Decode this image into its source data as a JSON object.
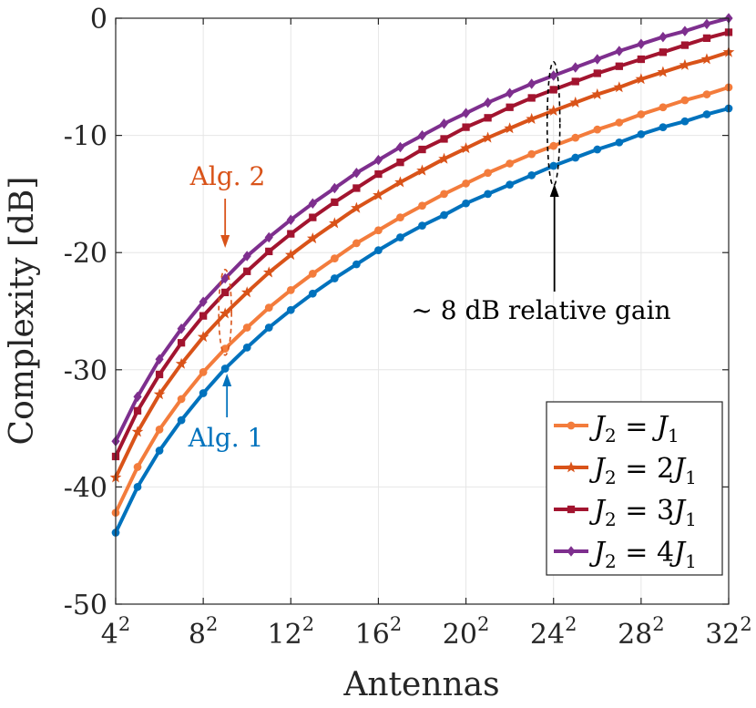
{
  "chart_data": {
    "type": "line",
    "title": "",
    "xlabel": "Antennas",
    "ylabel": "Complexity [dB]",
    "xlim": [
      4,
      32
    ],
    "ylim": [
      -50,
      0
    ],
    "x_ticks": [
      {
        "value": 4,
        "base": "4",
        "exp": "2"
      },
      {
        "value": 8,
        "base": "8",
        "exp": "2"
      },
      {
        "value": 12,
        "base": "12",
        "exp": "2"
      },
      {
        "value": 16,
        "base": "16",
        "exp": "2"
      },
      {
        "value": 20,
        "base": "20",
        "exp": "2"
      },
      {
        "value": 24,
        "base": "24",
        "exp": "2"
      },
      {
        "value": 28,
        "base": "28",
        "exp": "2"
      },
      {
        "value": 32,
        "base": "32",
        "exp": "2"
      }
    ],
    "y_ticks": [
      {
        "value": 0,
        "label": "0"
      },
      {
        "value": -10,
        "label": "-10"
      },
      {
        "value": -20,
        "label": "-20"
      },
      {
        "value": -30,
        "label": "-30"
      },
      {
        "value": -40,
        "label": "-40"
      },
      {
        "value": -50,
        "label": "-50"
      }
    ],
    "grid": true,
    "legend_position": "bottom-right",
    "x": [
      4,
      5,
      6,
      7,
      8,
      9,
      10,
      11,
      12,
      13,
      14,
      15,
      16,
      17,
      18,
      19,
      20,
      21,
      22,
      23,
      24,
      25,
      26,
      27,
      28,
      29,
      30,
      31,
      32
    ],
    "series": [
      {
        "name": "Alg. 1",
        "legend": false,
        "color": "#0072BD",
        "marker": "circle",
        "values": [
          -43.9,
          -40.0,
          -36.9,
          -34.3,
          -32.0,
          -29.9,
          -28.1,
          -26.4,
          -24.9,
          -23.5,
          -22.2,
          -21.0,
          -19.8,
          -18.7,
          -17.7,
          -16.8,
          -15.8,
          -15.0,
          -14.2,
          -13.4,
          -12.6,
          -11.9,
          -11.2,
          -10.6,
          -9.9,
          -9.3,
          -8.8,
          -8.2,
          -7.7
        ]
      },
      {
        "name": "J_2 = J_1",
        "legend": true,
        "legend_main": "J",
        "legend_sub": "2",
        "legend_tail": " = J",
        "legend_tail_sub": "1",
        "color": "#F37C3C",
        "marker": "circle",
        "values": [
          -42.2,
          -38.3,
          -35.1,
          -32.5,
          -30.2,
          -28.2,
          -26.4,
          -24.7,
          -23.2,
          -21.8,
          -20.5,
          -19.2,
          -18.1,
          -17.0,
          -16.0,
          -15.0,
          -14.1,
          -13.2,
          -12.4,
          -11.6,
          -10.9,
          -10.2,
          -9.5,
          -8.9,
          -8.2,
          -7.6,
          -7.0,
          -6.5,
          -5.9
        ]
      },
      {
        "name": "J_2 = 2J_1",
        "legend": true,
        "legend_main": "J",
        "legend_sub": "2",
        "legend_tail": " = 2J",
        "legend_tail_sub": "1",
        "color": "#D95319",
        "marker": "star",
        "values": [
          -39.2,
          -35.3,
          -32.1,
          -29.5,
          -27.2,
          -25.2,
          -23.4,
          -21.7,
          -20.2,
          -18.8,
          -17.5,
          -16.2,
          -15.1,
          -14.0,
          -13.0,
          -12.0,
          -11.1,
          -10.2,
          -9.4,
          -8.6,
          -7.9,
          -7.2,
          -6.5,
          -5.9,
          -5.2,
          -4.6,
          -4.0,
          -3.5,
          -2.9
        ]
      },
      {
        "name": "J_2 = 3J_1",
        "legend": true,
        "legend_main": "J",
        "legend_sub": "2",
        "legend_tail": " = 3J",
        "legend_tail_sub": "1",
        "color": "#A2142F",
        "marker": "square",
        "values": [
          -37.4,
          -33.5,
          -30.4,
          -27.7,
          -25.4,
          -23.4,
          -21.6,
          -19.9,
          -18.4,
          -17.0,
          -15.7,
          -14.5,
          -13.3,
          -12.3,
          -11.2,
          -10.3,
          -9.3,
          -8.5,
          -7.6,
          -6.8,
          -6.1,
          -5.4,
          -4.7,
          -4.1,
          -3.5,
          -2.9,
          -2.3,
          -1.7,
          -1.2
        ]
      },
      {
        "name": "J_2 = 4J_1",
        "legend": true,
        "legend_main": "J",
        "legend_sub": "2",
        "legend_tail": " = 4J",
        "legend_tail_sub": "1",
        "color": "#7E2F8E",
        "marker": "diamond",
        "values": [
          -36.1,
          -32.3,
          -29.1,
          -26.5,
          -24.2,
          -22.2,
          -20.3,
          -18.7,
          -17.2,
          -15.8,
          -14.5,
          -13.2,
          -12.1,
          -11.0,
          -10.0,
          -9.0,
          -8.1,
          -7.2,
          -6.4,
          -5.6,
          -4.9,
          -4.2,
          -3.5,
          -2.8,
          -2.2,
          -1.6,
          -1.1,
          -0.5,
          0.0
        ]
      }
    ],
    "annotations": [
      {
        "text": "Alg. 2",
        "color": "#D95319"
      },
      {
        "text": "Alg. 1",
        "color": "#0072BD"
      },
      {
        "text": "~ 8 dB relative gain",
        "color": "#000000"
      }
    ]
  }
}
